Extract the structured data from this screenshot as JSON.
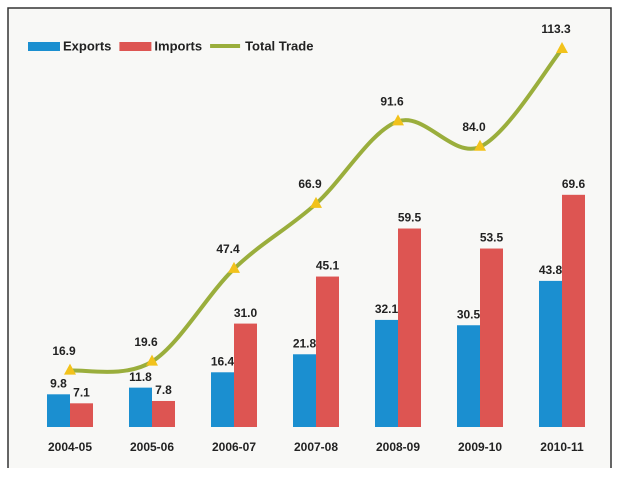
{
  "chart_data": {
    "type": "bar-line",
    "categories": [
      "2004-05",
      "2005-06",
      "2006-07",
      "2007-08",
      "2008-09",
      "2009-10",
      "2010-11"
    ],
    "series": [
      {
        "name": "Exports",
        "type": "bar",
        "color": "#1b8fd0",
        "values": [
          9.8,
          11.8,
          16.4,
          21.8,
          32.1,
          30.5,
          43.8
        ]
      },
      {
        "name": "Imports",
        "type": "bar",
        "color": "#dd5552",
        "values": [
          7.1,
          7.8,
          31.0,
          45.1,
          59.5,
          53.5,
          69.6
        ],
        "value_labels": [
          "7.1",
          "7.8",
          "31.0",
          "45.1",
          "59.5",
          "53.5",
          "69.6"
        ]
      },
      {
        "name": "Total Trade",
        "type": "line",
        "color": "#9aae3c",
        "marker_color": "#f2c21b",
        "values": [
          16.9,
          19.6,
          47.4,
          66.9,
          91.6,
          84.0,
          113.3
        ],
        "value_labels": [
          "16.9",
          "19.6",
          "47.4",
          "66.9",
          "91.6",
          "84.0",
          "113.3"
        ]
      }
    ],
    "ylim": [
      0,
      125
    ],
    "legend": "top-left"
  }
}
